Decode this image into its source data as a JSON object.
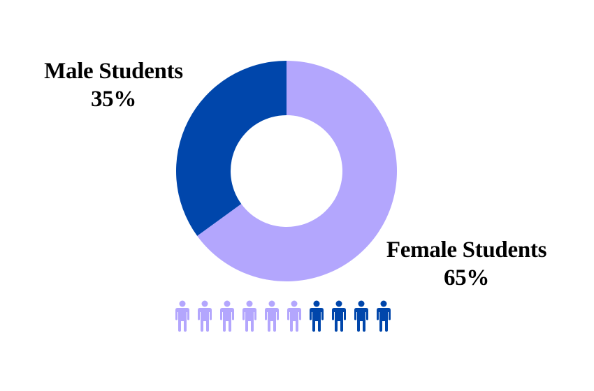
{
  "chart_data": {
    "type": "pie",
    "style": "donut",
    "slices": [
      {
        "label": "Male Students",
        "value": 35,
        "value_text": "35%",
        "color": "#0046ab"
      },
      {
        "label": "Female Students",
        "value": 65,
        "value_text": "65%",
        "color": "#b3a6fd"
      }
    ],
    "pictogram": {
      "total": 10,
      "first_count": 6,
      "first_color": "#b3a6fd",
      "second_count": 4,
      "second_color": "#0046ab",
      "icon": "person-icon"
    }
  }
}
